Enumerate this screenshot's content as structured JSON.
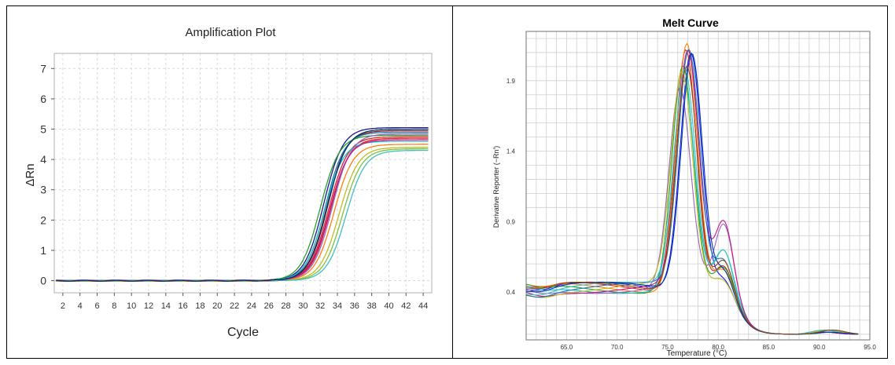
{
  "chart_data": [
    {
      "type": "line",
      "title": "Amplification Plot",
      "xlabel": "Cycle",
      "ylabel": "ΔRn",
      "xlim": [
        1,
        45
      ],
      "ylim": [
        -0.4,
        7.5
      ],
      "x_ticks": [
        2,
        4,
        6,
        8,
        10,
        12,
        14,
        16,
        18,
        20,
        22,
        24,
        26,
        28,
        30,
        32,
        34,
        36,
        38,
        40,
        42,
        44
      ],
      "y_ticks": [
        0,
        1,
        2,
        3,
        4,
        5,
        6,
        7
      ],
      "grid": true,
      "legend": "none",
      "series": [
        {
          "color": "#1a1a8c",
          "ct": 32.4,
          "plateau": 5.05
        },
        {
          "color": "#8b1a1a",
          "ct": 32.8,
          "plateau": 4.95
        },
        {
          "color": "#d62728",
          "ct": 33.0,
          "plateau": 4.75
        },
        {
          "color": "#e41a1c",
          "ct": 33.2,
          "plateau": 4.7
        },
        {
          "color": "#1f77b4",
          "ct": 32.6,
          "plateau": 4.9
        },
        {
          "color": "#2ca02c",
          "ct": 32.0,
          "plateau": 4.8
        },
        {
          "color": "#17becf",
          "ct": 32.5,
          "plateau": 4.6
        },
        {
          "color": "#9467bd",
          "ct": 33.4,
          "plateau": 4.85
        },
        {
          "color": "#ff7f0e",
          "ct": 33.6,
          "plateau": 4.5
        },
        {
          "color": "#bcbd22",
          "ct": 34.2,
          "plateau": 4.4
        },
        {
          "color": "#7fbf3f",
          "ct": 34.6,
          "plateau": 4.35
        },
        {
          "color": "#40c0c0",
          "ct": 35.0,
          "plateau": 4.3
        },
        {
          "color": "#c71585",
          "ct": 33.1,
          "plateau": 4.65
        },
        {
          "color": "#003366",
          "ct": 32.9,
          "plateau": 5.0
        }
      ]
    },
    {
      "type": "line",
      "title": "Melt Curve",
      "xlabel": "Temperature (°C)",
      "ylabel": "Derivative Reporter (−Rn′)",
      "xlim": [
        61,
        95
      ],
      "ylim": [
        0.06,
        2.25
      ],
      "x_ticks": [
        "65.0",
        "70.0",
        "75.0",
        "80.0",
        "85.0",
        "90.0",
        "95.0"
      ],
      "y_ticks": [
        "0.4",
        "0.9",
        "1.4",
        "1.9"
      ],
      "grid": true,
      "legend": "none",
      "series": [
        {
          "color": "#1a1aff",
          "tm": 77.3,
          "peak": 2.15,
          "shoulder": 0.45
        },
        {
          "color": "#d62728",
          "tm": 76.8,
          "peak": 2.18,
          "shoulder": 0.55
        },
        {
          "color": "#ff7f0e",
          "tm": 76.9,
          "peak": 2.22,
          "shoulder": 0.5
        },
        {
          "color": "#2ca02c",
          "tm": 76.5,
          "peak": 2.05,
          "shoulder": 0.5
        },
        {
          "color": "#17becf",
          "tm": 76.6,
          "peak": 1.92,
          "shoulder": 0.62
        },
        {
          "color": "#9467bd",
          "tm": 76.2,
          "peak": 1.85,
          "shoulder": 0.82
        },
        {
          "color": "#c71585",
          "tm": 77.0,
          "peak": 2.1,
          "shoulder": 0.85
        },
        {
          "color": "#bcbd22",
          "tm": 76.4,
          "peak": 1.95,
          "shoulder": 0.4
        },
        {
          "color": "#1f77b4",
          "tm": 77.1,
          "peak": 2.12,
          "shoulder": 0.58
        },
        {
          "color": "#40c0c0",
          "tm": 76.7,
          "peak": 2.0,
          "shoulder": 0.68
        },
        {
          "color": "#003399",
          "tm": 77.4,
          "peak": 2.14,
          "shoulder": 0.52
        },
        {
          "color": "#8b4513",
          "tm": 76.9,
          "peak": 2.06,
          "shoulder": 0.6
        }
      ]
    }
  ]
}
